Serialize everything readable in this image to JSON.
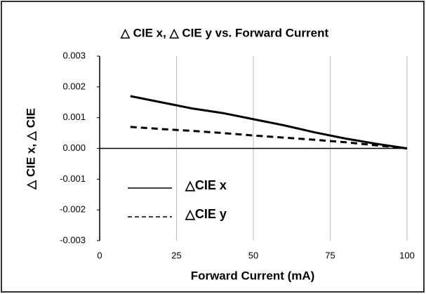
{
  "chart_data": {
    "type": "line",
    "title": "△ CIE x, △ CIE y vs. Forward Current",
    "x_label": "Forward Current (mA)",
    "y_label": "△ CIE x, △ CIE",
    "x": [
      10,
      20,
      30,
      40,
      50,
      60,
      70,
      80,
      90,
      100
    ],
    "series": [
      {
        "name": "△CIE x",
        "color": "#000000",
        "dashed": false,
        "values": [
          0.0017,
          0.0015,
          0.0013,
          0.00115,
          0.00095,
          0.00075,
          0.00052,
          0.00032,
          0.00015,
          0
        ]
      },
      {
        "name": "△CIE y",
        "color": "#000000",
        "dashed": true,
        "values": [
          0.0007,
          0.00063,
          0.00057,
          0.0005,
          0.00042,
          0.00035,
          0.00028,
          0.0002,
          0.0001,
          0
        ]
      }
    ],
    "xlim": [
      0,
      100
    ],
    "xticks": [
      0,
      25,
      50,
      75,
      100
    ],
    "ylim": [
      -0.003,
      0.003
    ],
    "yticks": [
      0.003,
      0.002,
      0.001,
      {
        "value": 0,
        "label": "0.000"
      },
      -0.001,
      -0.002,
      -0.003
    ],
    "grid": "x",
    "legend": "lower left"
  }
}
